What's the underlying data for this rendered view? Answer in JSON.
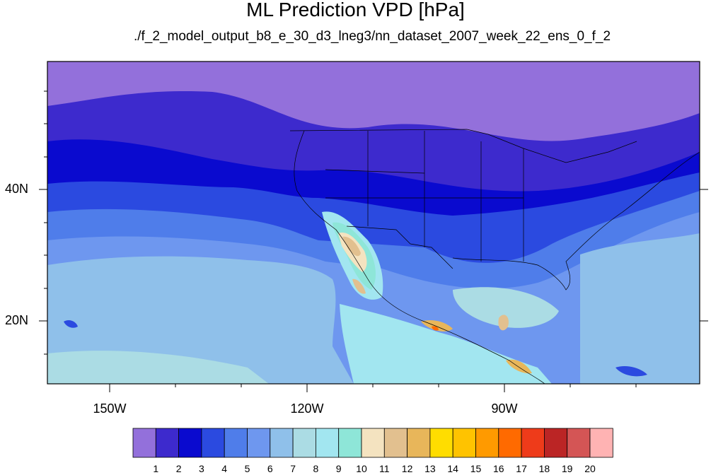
{
  "title": "ML Prediction VPD [hPa]",
  "subtitle": "./f_2_model_output_b8_e_30_d3_lneg3/nn_dataset_2007_week_22_ens_0_f_2",
  "axes": {
    "lat_ticks": [
      {
        "label": "40N",
        "lat": 40
      },
      {
        "label": "20N",
        "lat": 20
      }
    ],
    "lon_ticks": [
      {
        "label": "150W",
        "lon": -150
      },
      {
        "label": "120W",
        "lon": -120
      },
      {
        "label": "90W",
        "lon": -90
      }
    ]
  },
  "colorbar": {
    "labels": [
      "1",
      "2",
      "3",
      "4",
      "5",
      "6",
      "7",
      "8",
      "9",
      "10",
      "11",
      "12",
      "13",
      "14",
      "15",
      "16",
      "17",
      "18",
      "19",
      "20"
    ],
    "colors": [
      "#9370DB",
      "#3D2ACD",
      "#0A0ACF",
      "#2B4AE0",
      "#4F7DEA",
      "#6E97EF",
      "#8FC0EA",
      "#ABDCE4",
      "#A2E6F0",
      "#8EE6D8",
      "#F4E3C0",
      "#E2C08F",
      "#E8B65A",
      "#FFDD00",
      "#FFC300",
      "#FF9A00",
      "#FF6A00",
      "#EE3B1A",
      "#BB2525",
      "#D45555",
      "#FFB3B3"
    ]
  },
  "map_fields": {
    "region": "Western Hemisphere, North Pacific and North America",
    "vpd_pattern": "low in north, high in southwest desert and Mexico highlands"
  }
}
